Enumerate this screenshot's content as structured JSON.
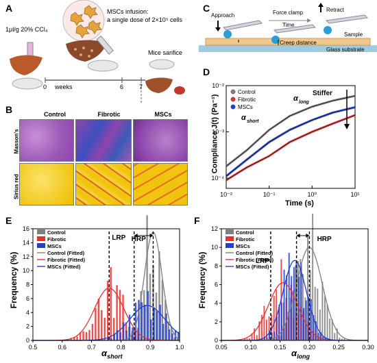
{
  "panels": {
    "A": {
      "label": "A",
      "dose_text": "1μl/g 20% CCl₄",
      "infusion_line1": "MSCs infusion:",
      "infusion_line2": "a single dose of 2×10⁵ cells",
      "timeline_unit": "weeks",
      "timeline_ticks": [
        "0",
        "6",
        "7"
      ],
      "sacrifice_text": "Mice sarifice"
    },
    "B": {
      "label": "B",
      "columns": [
        "Control",
        "Fibrotic",
        "MSCs"
      ],
      "rows": [
        "Masson's",
        "Sirius red"
      ]
    },
    "C": {
      "label": "C",
      "approach": "Approach",
      "force_clamp": "Force clamp",
      "time": "Time",
      "retract": "Retract",
      "sample": "Sample",
      "creep_distance": "Creep distance",
      "glass_substrate": "Glass substrate"
    },
    "D": {
      "label": "D",
      "ylabel": "Compliance  J(t)  (Pa⁻¹)",
      "xlabel": "Time  (s)",
      "legend": [
        "Control",
        "Fibrotic",
        "MSCs"
      ],
      "annot_short": "α",
      "annot_short_sub": "short",
      "annot_long": "α",
      "annot_long_sub": "long",
      "stiffer": "Stiffer",
      "x_ticks": [
        "10⁻²",
        "10⁻¹",
        "10⁰",
        "10¹"
      ],
      "y_ticks": [
        "10⁻²",
        "10⁻³",
        "10⁻⁴"
      ]
    },
    "E": {
      "label": "E",
      "ylabel": "Frequency  (%)",
      "xlabel": "α",
      "xlabel_sub": "short",
      "lrp": "LRP",
      "hrp": "HRP",
      "x_ticks": [
        "0.5",
        "0.6",
        "0.7",
        "0.8",
        "0.9",
        "1.0"
      ],
      "y_ticks": [
        "0",
        "2",
        "4",
        "6",
        "8",
        "10",
        "12",
        "14",
        "16"
      ],
      "legend": [
        "Control",
        "Fibrotic",
        "MSCs",
        "Control (Fitted)",
        "Fibrotic (Fitted)",
        "MSCs (Fitted)"
      ]
    },
    "F": {
      "label": "F",
      "ylabel": "Frequency  (%)",
      "xlabel": "α",
      "xlabel_sub": "long",
      "lrp": "LRP",
      "hrp": "HRP",
      "x_ticks": [
        "0.05",
        "0.10",
        "0.15",
        "0.20",
        "0.25",
        "0.30"
      ],
      "y_ticks": [
        "0",
        "2",
        "4",
        "6",
        "8",
        "10",
        "12"
      ],
      "legend": [
        "Control",
        "Fibrotic",
        "MSCs",
        "Control (Fitted)",
        "Fibrotic (Fitted)",
        "MSCs (Fitted)"
      ]
    }
  },
  "colors": {
    "control": "#808080",
    "fibrotic": "#e8312f",
    "mscs": "#1f3fd6",
    "masson_bg": "#a86bbf",
    "sirius_bg": "#f1c40f"
  },
  "chart_data": [
    {
      "type": "line",
      "title": "",
      "xlabel": "Time (s)",
      "ylabel": "Compliance J(t) (Pa^-1)",
      "xscale": "log",
      "yscale": "log",
      "xlim": [
        0.01,
        10
      ],
      "ylim": [
        6e-05,
        0.01
      ],
      "legend_position": "top-left",
      "series": [
        {
          "name": "Control",
          "x": [
            0.01,
            0.03,
            0.1,
            0.3,
            1,
            3,
            10
          ],
          "y": [
            0.00018,
            0.0004,
            0.0011,
            0.0022,
            0.0035,
            0.0047,
            0.006
          ]
        },
        {
          "name": "Fibrotic",
          "x": [
            0.01,
            0.03,
            0.1,
            0.3,
            1,
            3,
            10
          ],
          "y": [
            9e-05,
            0.00017,
            0.0003,
            0.0006,
            0.001,
            0.0015,
            0.0023
          ]
        },
        {
          "name": "MSCs",
          "x": [
            0.01,
            0.03,
            0.1,
            0.3,
            1,
            3,
            10
          ],
          "y": [
            0.00011,
            0.00025,
            0.0006,
            0.0011,
            0.0018,
            0.0026,
            0.0034
          ]
        }
      ]
    },
    {
      "type": "bar",
      "title": "",
      "xlabel": "α_short",
      "ylabel": "Frequency (%)",
      "xlim": [
        0.5,
        1.0
      ],
      "ylim": [
        0,
        16
      ],
      "legend_position": "top-left",
      "series": [
        {
          "name": "Control",
          "mean": 0.91,
          "sd": 0.03,
          "peak": 15.5
        },
        {
          "name": "Fibrotic",
          "mean": 0.76,
          "sd": 0.05,
          "peak": 7.5
        },
        {
          "name": "MSCs",
          "mean": 0.89,
          "sd": 0.06,
          "peak": 5.0
        }
      ],
      "annotations": {
        "LRP": 0.76,
        "HRP_left": 0.845,
        "HRP_right": 0.91
      }
    },
    {
      "type": "bar",
      "title": "",
      "xlabel": "α_long",
      "ylabel": "Frequency (%)",
      "xlim": [
        0.05,
        0.3
      ],
      "ylim": [
        0,
        12
      ],
      "legend_position": "top-left",
      "series": [
        {
          "name": "Control",
          "mean": 0.2,
          "sd": 0.022,
          "peak": 10.0
        },
        {
          "name": "Fibrotic",
          "mean": 0.155,
          "sd": 0.025,
          "peak": 6.2
        },
        {
          "name": "MSCs",
          "mean": 0.175,
          "sd": 0.02,
          "peak": 8.6
        }
      ],
      "annotations": {
        "LRP": 0.134,
        "HRP_left": 0.178,
        "HRP_right": 0.2
      }
    }
  ]
}
